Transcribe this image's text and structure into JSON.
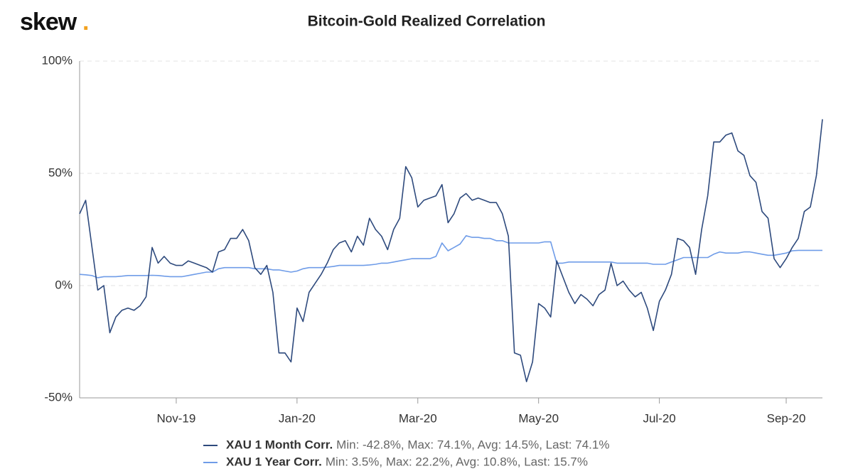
{
  "logo": {
    "text": "skew",
    "dot": "."
  },
  "chart_data": {
    "type": "line",
    "title": "Bitcoin-Gold Realized Correlation",
    "categories": [
      null,
      null,
      null,
      null,
      null,
      null,
      null,
      null,
      null,
      null,
      null,
      null,
      null,
      null,
      null,
      null,
      "Nov-19",
      null,
      null,
      null,
      null,
      null,
      null,
      null,
      null,
      null,
      null,
      null,
      null,
      null,
      null,
      null,
      null,
      null,
      null,
      null,
      "Jan-20",
      null,
      null,
      null,
      null,
      null,
      null,
      null,
      null,
      null,
      null,
      null,
      null,
      null,
      null,
      null,
      null,
      null,
      null,
      null,
      "Mar-20",
      null,
      null,
      null,
      null,
      null,
      null,
      null,
      null,
      null,
      null,
      null,
      null,
      null,
      null,
      null,
      null,
      null,
      null,
      null,
      "May-20",
      null,
      null,
      null,
      null,
      null,
      null,
      null,
      null,
      null,
      null,
      null,
      null,
      null,
      null,
      null,
      null,
      null,
      null,
      null,
      "Jul-20",
      null,
      null,
      null,
      null,
      null,
      null,
      null,
      null,
      null,
      null,
      null,
      null,
      null,
      null,
      null,
      null,
      null,
      null,
      null,
      null,
      "Sep-20",
      null,
      null,
      null,
      null,
      null,
      null
    ],
    "series": [
      {
        "name": "XAU 1 Month Corr.",
        "stats": "Min: -42.8%, Max: 74.1%, Avg: 14.5%, Last: 74.1%",
        "color": "#2e4a7d",
        "values": [
          32,
          38,
          18,
          -2,
          0,
          -21,
          -14,
          -11,
          -10,
          -11,
          -9,
          -5,
          17,
          10,
          13,
          10,
          9,
          9,
          11,
          10,
          9,
          8,
          6,
          15,
          16,
          21,
          21,
          25,
          20,
          8,
          5,
          9,
          -3,
          -30,
          -30,
          -34,
          -10,
          -16,
          -3,
          1,
          5,
          10,
          16,
          19,
          20,
          15,
          22,
          18,
          30,
          25,
          22,
          16,
          25,
          30,
          53,
          48,
          35,
          38,
          39,
          40,
          45,
          28,
          32,
          39,
          41,
          38,
          39,
          38,
          37,
          37,
          32,
          22,
          -30,
          -31,
          -42.8,
          -34,
          -8,
          -10,
          -14,
          11,
          4,
          -3,
          -8,
          -4,
          -6,
          -9,
          -4,
          -2,
          10,
          0,
          2,
          -2,
          -5,
          -3,
          -10,
          -20,
          -7,
          -2,
          5,
          21,
          20,
          17,
          5,
          25,
          40,
          64,
          64,
          67,
          68,
          60,
          58,
          49,
          46,
          33,
          30,
          12,
          8,
          12,
          17,
          21,
          33,
          35,
          49,
          74.1
        ]
      },
      {
        "name": "XAU 1 Year Corr.",
        "stats": "Min: 3.5%, Max: 22.2%, Avg: 10.8%, Last: 15.7%",
        "color": "#6f9ce8",
        "values": [
          5,
          4.8,
          4.5,
          3.5,
          4,
          4,
          4,
          4.2,
          4.5,
          4.5,
          4.5,
          4.5,
          4.6,
          4.5,
          4.2,
          4,
          4,
          4,
          4.5,
          5,
          5.5,
          6,
          6,
          7.5,
          8,
          8,
          8,
          8,
          8,
          7.5,
          7.5,
          7.5,
          7,
          7,
          6.5,
          6,
          6.5,
          7.5,
          8,
          8,
          8,
          8.2,
          8.5,
          9,
          9,
          9,
          9,
          9,
          9.2,
          9.5,
          10,
          10,
          10.5,
          11,
          11.5,
          12,
          12,
          12,
          12,
          13,
          19,
          15.5,
          17,
          18.5,
          22.2,
          21.5,
          21.5,
          21,
          21,
          20,
          20,
          19,
          19,
          19,
          19,
          19,
          19,
          19.5,
          19.5,
          10,
          10,
          10.5,
          10.5,
          10.5,
          10.5,
          10.5,
          10.5,
          10.5,
          10.5,
          10,
          10,
          10,
          10,
          10,
          10,
          9.5,
          9.5,
          9.5,
          10.5,
          11.5,
          12.5,
          12.5,
          12.5,
          12.5,
          12.5,
          14,
          15,
          14.5,
          14.5,
          14.5,
          15,
          15,
          14.5,
          14,
          13.5,
          13.5,
          14,
          14.5,
          15.5,
          15.7,
          15.7,
          15.7,
          15.7,
          15.7
        ]
      }
    ],
    "ylim": [
      -50,
      100
    ],
    "yticks": [
      {
        "value": -50,
        "label": "-50%"
      },
      {
        "value": 0,
        "label": "0%"
      },
      {
        "value": 50,
        "label": "50%"
      },
      {
        "value": 100,
        "label": "100%"
      }
    ],
    "grid": true
  }
}
